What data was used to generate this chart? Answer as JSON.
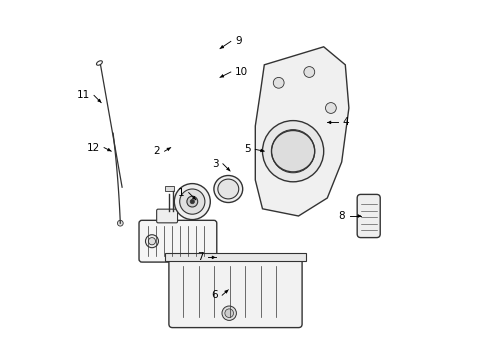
{
  "background_color": "#ffffff",
  "line_color": "#333333",
  "label_color": "#000000",
  "figsize": [
    4.89,
    3.6
  ],
  "dpi": 100,
  "label_positions": {
    "9": [
      0.462,
      0.885,
      0.432,
      0.865
    ],
    "10": [
      0.462,
      0.8,
      0.432,
      0.785
    ],
    "4": [
      0.76,
      0.66,
      0.73,
      0.66
    ],
    "5": [
      0.53,
      0.585,
      0.555,
      0.58
    ],
    "3": [
      0.44,
      0.545,
      0.46,
      0.525
    ],
    "1": [
      0.345,
      0.465,
      0.365,
      0.445
    ],
    "2": [
      0.278,
      0.58,
      0.295,
      0.59
    ],
    "6": [
      0.438,
      0.18,
      0.455,
      0.195
    ],
    "7": [
      0.4,
      0.285,
      0.42,
      0.285
    ],
    "8": [
      0.792,
      0.4,
      0.825,
      0.4
    ],
    "11": [
      0.082,
      0.735,
      0.102,
      0.715
    ],
    "12": [
      0.11,
      0.59,
      0.13,
      0.58
    ]
  }
}
